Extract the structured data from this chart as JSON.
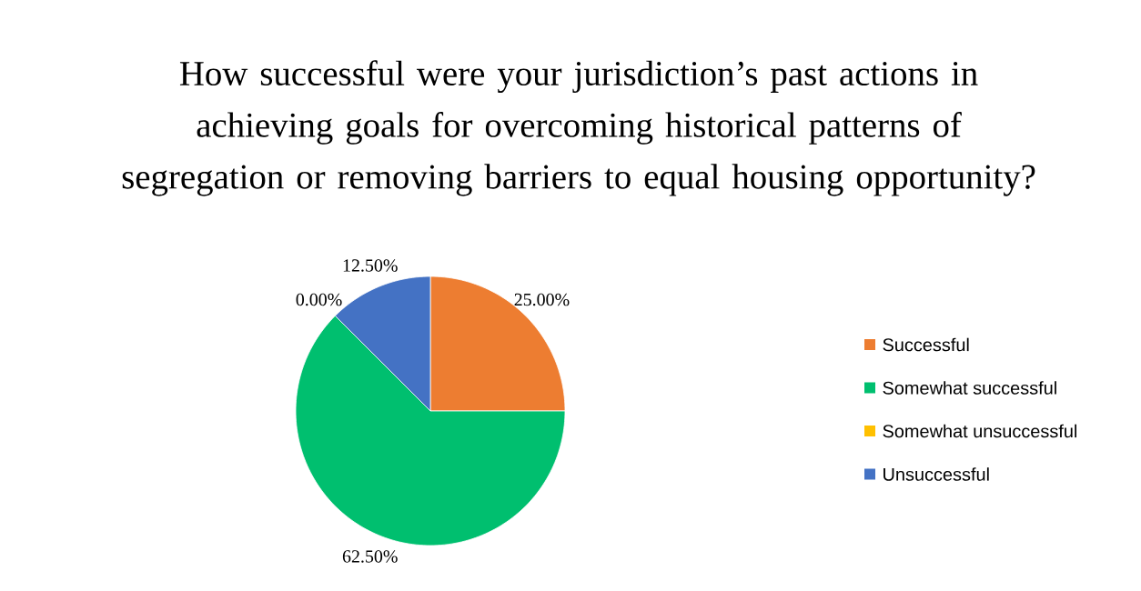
{
  "chart_data": {
    "type": "pie",
    "title": "How successful were your jurisdiction’s past actions in achieving goals for overcoming historical patterns of segregation or removing barriers to equal housing opportunity?",
    "categories": [
      "Successful",
      "Somewhat successful",
      "Somewhat unsuccessful",
      "Unsuccessful"
    ],
    "values": [
      25,
      62.5,
      0,
      12.5
    ],
    "colors": [
      "#ed7d31",
      "#00bf6f",
      "#ffc000",
      "#4472c4"
    ],
    "value_labels": [
      "25.00%",
      "62.50%",
      "0.00%",
      "12.50%"
    ],
    "legend": "right"
  }
}
